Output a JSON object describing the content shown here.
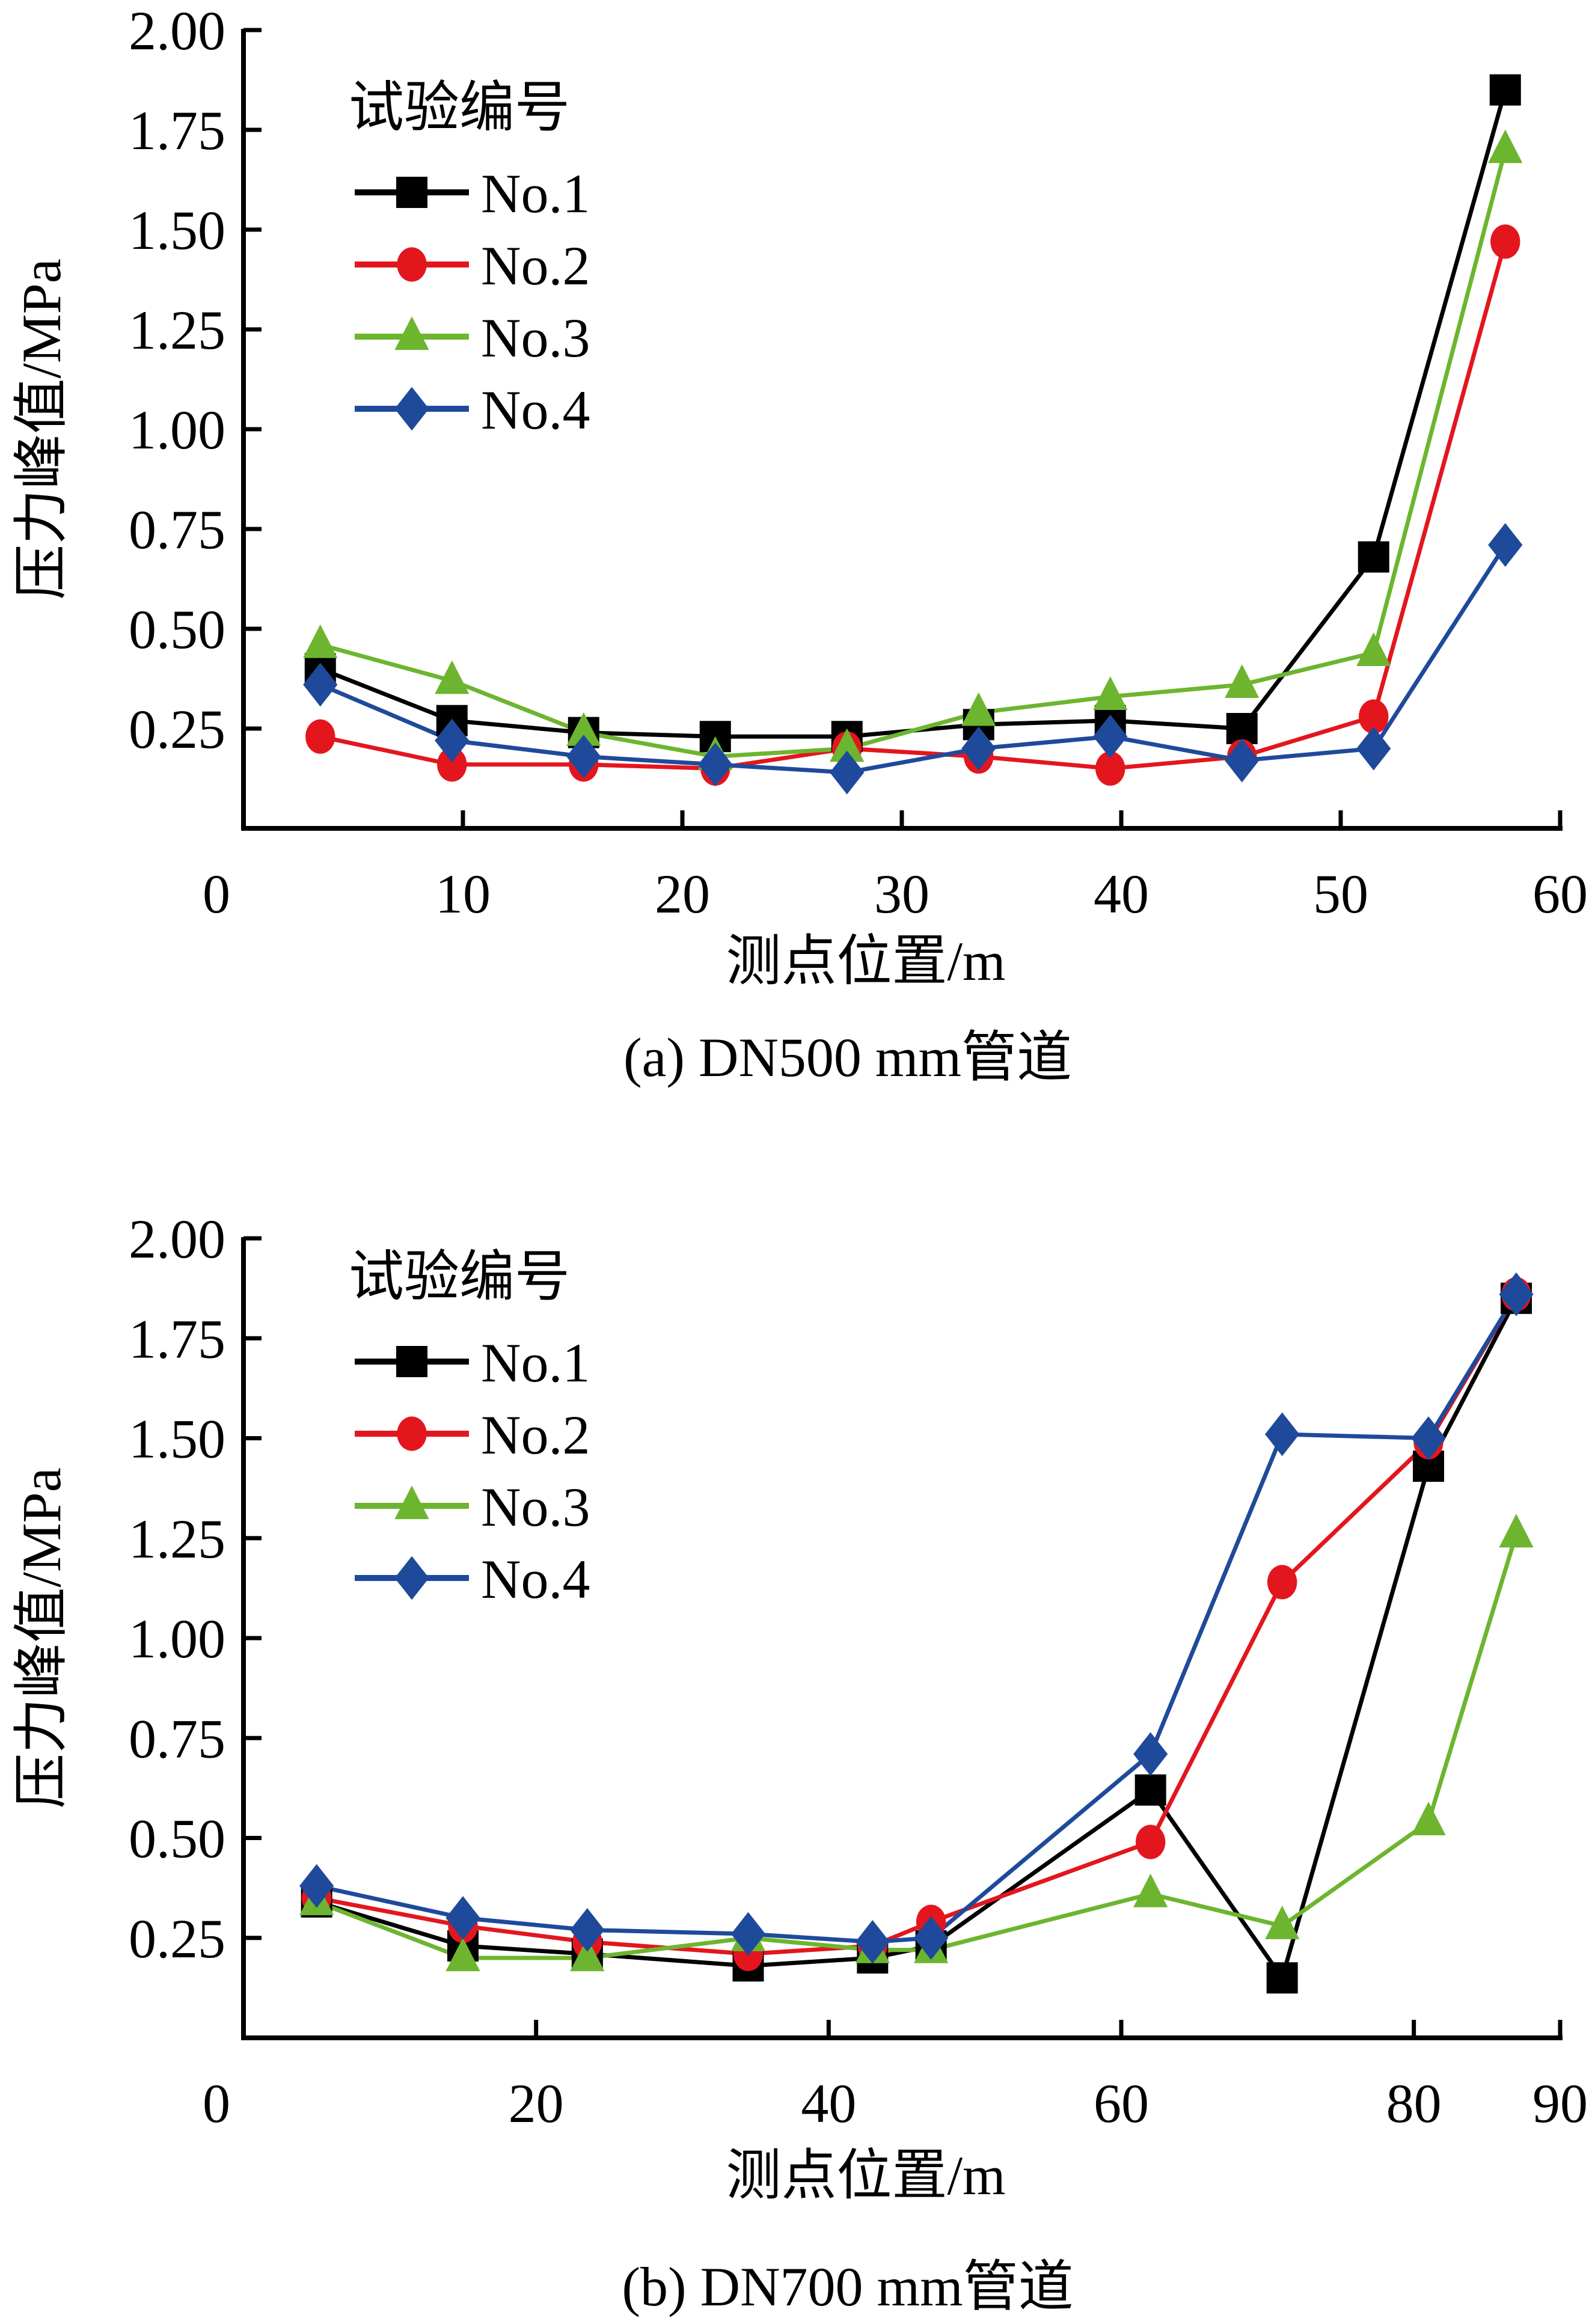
{
  "chart_data": [
    {
      "type": "line",
      "caption": "(a) DN500 mm管道",
      "xlabel": "测点位置/m",
      "ylabel": "压力峰值/MPa",
      "xlim": [
        0,
        60
      ],
      "ylim": [
        0,
        2.0
      ],
      "x_ticks": [
        0,
        10,
        20,
        30,
        40,
        50,
        60
      ],
      "x_tick_labels": [
        "0",
        "10",
        "20",
        "30",
        "40",
        "50",
        "60"
      ],
      "y_ticks": [
        0.25,
        0.5,
        0.75,
        1.0,
        1.25,
        1.5,
        1.75,
        2.0
      ],
      "y_tick_labels": [
        "0.25",
        "0.50",
        "0.75",
        "1.00",
        "1.25",
        "1.50",
        "1.75",
        "2.00"
      ],
      "legend_title": "试验编号",
      "legend_position": "top-left",
      "grid": false,
      "x": [
        3.5,
        9.5,
        15.5,
        21.5,
        27.5,
        33.5,
        39.5,
        45.5,
        51.5,
        57.5
      ],
      "series": [
        {
          "name": "No.1",
          "color": "#000000",
          "marker": "square",
          "values": [
            0.4,
            0.27,
            0.24,
            0.23,
            0.23,
            0.26,
            0.27,
            0.25,
            0.68,
            1.85
          ]
        },
        {
          "name": "No.2",
          "color": "#e3161e",
          "marker": "circle",
          "values": [
            0.23,
            0.16,
            0.16,
            0.15,
            0.2,
            0.18,
            0.15,
            0.18,
            0.28,
            1.47
          ]
        },
        {
          "name": "No.3",
          "color": "#6db52f",
          "marker": "triangle",
          "values": [
            0.46,
            0.37,
            0.24,
            0.18,
            0.2,
            0.29,
            0.33,
            0.36,
            0.44,
            1.7
          ]
        },
        {
          "name": "No.4",
          "color": "#1f4a9b",
          "marker": "diamond",
          "values": [
            0.36,
            0.22,
            0.18,
            0.16,
            0.14,
            0.2,
            0.23,
            0.17,
            0.2,
            0.71
          ]
        }
      ]
    },
    {
      "type": "line",
      "caption": "(b) DN700 mm管道",
      "xlabel": "测点位置/m",
      "ylabel": "压力峰值/MPa",
      "xlim": [
        0,
        90
      ],
      "ylim": [
        0,
        2.0
      ],
      "x_ticks": [
        0,
        20,
        40,
        60,
        80,
        90
      ],
      "x_tick_labels": [
        "0",
        "20",
        "40",
        "60",
        "80",
        "90"
      ],
      "y_ticks": [
        0.25,
        0.5,
        0.75,
        1.0,
        1.25,
        1.5,
        1.75,
        2.0
      ],
      "y_tick_labels": [
        "0.25",
        "0.50",
        "0.75",
        "1.00",
        "1.25",
        "1.50",
        "1.75",
        "2.00"
      ],
      "legend_title": "试验编号",
      "legend_position": "top-left",
      "grid": false,
      "x": [
        5,
        15,
        23.5,
        34.5,
        43,
        47,
        62,
        71,
        81,
        87
      ],
      "series": [
        {
          "name": "No.1",
          "color": "#000000",
          "marker": "square",
          "values": [
            0.34,
            0.23,
            0.21,
            0.18,
            0.2,
            0.23,
            0.62,
            0.15,
            1.43,
            1.85
          ]
        },
        {
          "name": "No.2",
          "color": "#e3161e",
          "marker": "circle",
          "values": [
            0.35,
            0.28,
            0.24,
            0.21,
            0.23,
            0.29,
            0.49,
            1.14,
            1.49,
            1.86
          ]
        },
        {
          "name": "No.3",
          "color": "#6db52f",
          "marker": "triangle",
          "values": [
            0.34,
            0.2,
            0.2,
            0.25,
            0.22,
            0.22,
            0.36,
            0.28,
            0.54,
            1.26
          ]
        },
        {
          "name": "No.4",
          "color": "#1f4a9b",
          "marker": "diamond",
          "values": [
            0.38,
            0.3,
            0.27,
            0.26,
            0.24,
            0.25,
            0.71,
            1.51,
            1.5,
            1.86
          ]
        }
      ]
    }
  ]
}
